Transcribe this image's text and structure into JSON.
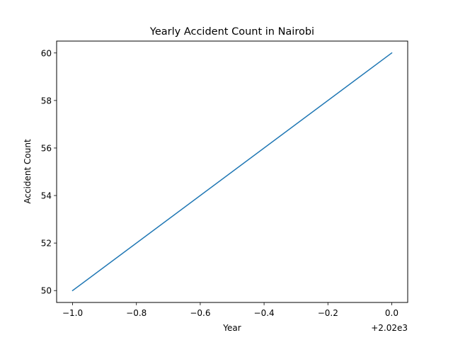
{
  "chart_data": {
    "type": "line",
    "title": "Yearly Accident Count in Nairobi",
    "xlabel": "Year",
    "ylabel": "Accident Count",
    "x_offset_label": "+2.02e3",
    "x_tick_labels": [
      "−1.0",
      "−0.8",
      "−0.6",
      "−0.4",
      "−0.2",
      "0.0"
    ],
    "x_ticks": [
      2019,
      2019.2,
      2019.4,
      2019.6,
      2019.8,
      2020
    ],
    "y_tick_labels": [
      "50",
      "52",
      "54",
      "56",
      "58",
      "60"
    ],
    "y_ticks": [
      50,
      52,
      54,
      56,
      58,
      60
    ],
    "xlim": [
      2018.95,
      2020.05
    ],
    "ylim": [
      49.5,
      60.5
    ],
    "grid": false,
    "series": [
      {
        "x": [
          2019,
          2020
        ],
        "values": [
          50,
          60
        ],
        "color": "#1f77b4"
      }
    ]
  }
}
